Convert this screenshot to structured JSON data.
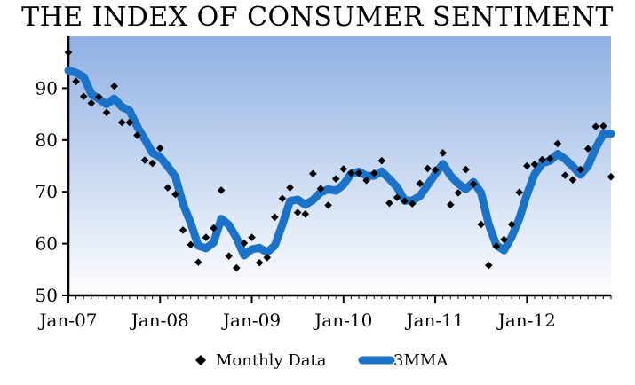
{
  "chart_data": {
    "type": "line",
    "title": "THE INDEX OF CONSUMER SENTIMENT",
    "xlabel": "",
    "ylabel": "",
    "ylim": [
      50,
      100
    ],
    "yticks": [
      50,
      60,
      70,
      80,
      90
    ],
    "x_ticks": [
      "Jan-07",
      "Jan-08",
      "Jan-09",
      "Jan-10",
      "Jan-11",
      "Jan-12"
    ],
    "x": [
      "Jan-07",
      "Feb-07",
      "Mar-07",
      "Apr-07",
      "May-07",
      "Jun-07",
      "Jul-07",
      "Aug-07",
      "Sep-07",
      "Oct-07",
      "Nov-07",
      "Dec-07",
      "Jan-08",
      "Feb-08",
      "Mar-08",
      "Apr-08",
      "May-08",
      "Jun-08",
      "Jul-08",
      "Aug-08",
      "Sep-08",
      "Oct-08",
      "Nov-08",
      "Dec-08",
      "Jan-09",
      "Feb-09",
      "Mar-09",
      "Apr-09",
      "May-09",
      "Jun-09",
      "Jul-09",
      "Aug-09",
      "Sep-09",
      "Oct-09",
      "Nov-09",
      "Dec-09",
      "Jan-10",
      "Feb-10",
      "Mar-10",
      "Apr-10",
      "May-10",
      "Jun-10",
      "Jul-10",
      "Aug-10",
      "Sep-10",
      "Oct-10",
      "Nov-10",
      "Dec-10",
      "Jan-11",
      "Feb-11",
      "Mar-11",
      "Apr-11",
      "May-11",
      "Jun-11",
      "Jul-11",
      "Aug-11",
      "Sep-11",
      "Oct-11",
      "Nov-11",
      "Dec-11",
      "Jan-12",
      "Feb-12",
      "Mar-12",
      "Apr-12",
      "May-12",
      "Jun-12",
      "Jul-12",
      "Aug-12",
      "Sep-12",
      "Oct-12",
      "Nov-12",
      "Dec-12"
    ],
    "series": [
      {
        "name": "Monthly Data",
        "marker": "diamond",
        "color": "#000000",
        "values": [
          96.9,
          91.3,
          88.4,
          87.1,
          88.3,
          85.3,
          90.4,
          83.4,
          83.4,
          80.9,
          76.1,
          75.5,
          78.4,
          70.8,
          69.5,
          62.6,
          59.8,
          56.4,
          61.2,
          63.0,
          70.3,
          57.6,
          55.3,
          60.1,
          61.2,
          56.3,
          57.3,
          65.1,
          68.7,
          70.8,
          66.0,
          65.7,
          73.5,
          70.6,
          67.4,
          72.5,
          74.4,
          73.6,
          73.6,
          72.2,
          73.6,
          76.0,
          67.8,
          68.9,
          68.2,
          67.7,
          71.6,
          74.5,
          74.2,
          77.5,
          67.5,
          69.8,
          74.3,
          71.5,
          63.7,
          55.8,
          59.5,
          60.8,
          63.7,
          69.9,
          75.0,
          75.3,
          76.2,
          76.4,
          79.3,
          73.2,
          72.3,
          74.3,
          78.3,
          82.6,
          82.7,
          72.9
        ]
      },
      {
        "name": "3MMA",
        "color": "#1a73c8",
        "values": [
          93.4,
          93.0,
          92.2,
          88.9,
          87.9,
          86.9,
          88.0,
          86.4,
          85.7,
          82.6,
          80.1,
          77.5,
          76.7,
          74.9,
          72.9,
          67.6,
          64.0,
          59.6,
          59.1,
          60.2,
          64.8,
          63.6,
          61.1,
          57.7,
          58.9,
          59.2,
          58.3,
          59.6,
          63.7,
          68.2,
          68.5,
          67.5,
          68.4,
          69.9,
          70.5,
          70.2,
          71.4,
          73.5,
          73.9,
          73.1,
          73.1,
          73.9,
          72.5,
          70.9,
          68.3,
          68.3,
          69.2,
          71.3,
          73.4,
          75.4,
          73.1,
          71.6,
          70.5,
          71.9,
          69.8,
          63.7,
          59.7,
          58.7,
          61.3,
          64.8,
          69.5,
          73.4,
          75.5,
          76.0,
          77.3,
          76.3,
          74.9,
          73.3,
          75.0,
          78.4,
          81.2,
          81.2
        ]
      }
    ],
    "grid": false,
    "legend": "bottom-center",
    "plot_gradient": {
      "top": "#8fb0e3",
      "bottom": "#ffffff"
    }
  }
}
